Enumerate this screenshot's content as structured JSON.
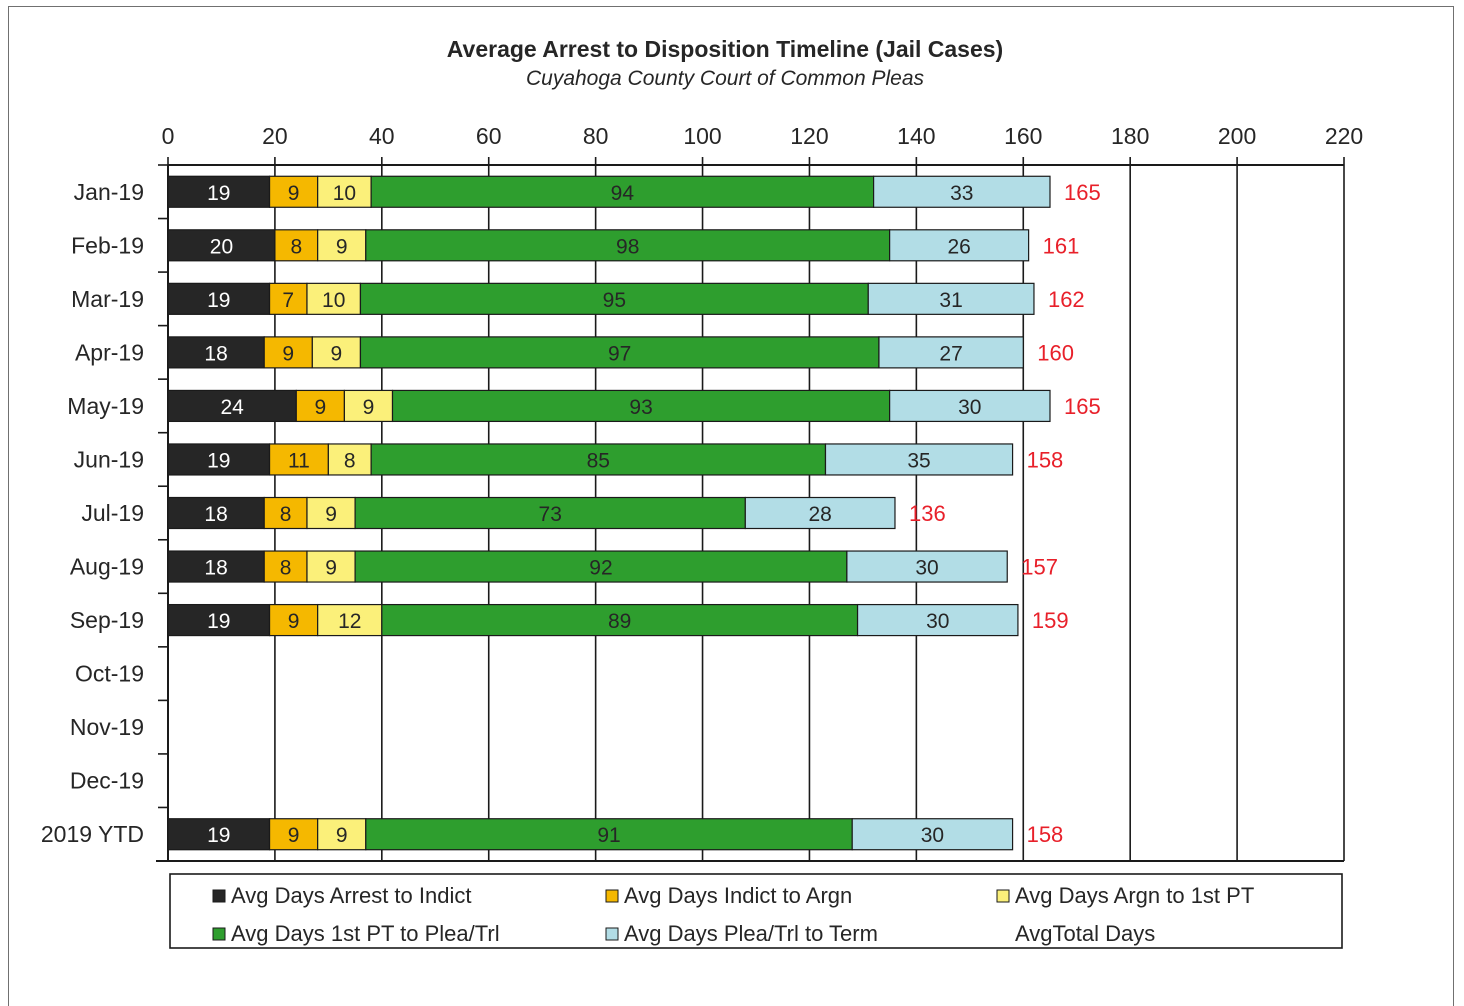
{
  "chart_data": {
    "type": "bar",
    "orientation": "horizontal",
    "stacked": true,
    "title": "Average Arrest to Disposition  Timeline (Jail Cases)",
    "subtitle": "Cuyahoga County Court of Common Pleas",
    "xlim": [
      0,
      220
    ],
    "xticks": [
      "0",
      "20",
      "40",
      "60",
      "80",
      "100",
      "120",
      "140",
      "160",
      "180",
      "200",
      "220"
    ],
    "axis_position": "top",
    "grid": "vertical",
    "legend_position": "bottom",
    "categories": [
      "Jan-19",
      "Feb-19",
      "Mar-19",
      "Apr-19",
      "May-19",
      "Jun-19",
      "Jul-19",
      "Aug-19",
      "Sep-19",
      "Oct-19",
      "Nov-19",
      "Dec-19",
      "2019 YTD"
    ],
    "series": [
      {
        "name": "Avg Days Arrest to Indict",
        "color": "#262626",
        "label_color": "#ffffff",
        "values": [
          19,
          20,
          19,
          18,
          24,
          19,
          18,
          18,
          19,
          null,
          null,
          null,
          19
        ]
      },
      {
        "name": "Avg Days Indict to Argn",
        "color": "#f5b800",
        "label_color": "#262626",
        "values": [
          9,
          8,
          7,
          9,
          9,
          11,
          8,
          8,
          9,
          null,
          null,
          null,
          9
        ]
      },
      {
        "name": "Avg Days Argn to 1st PT",
        "color": "#fbf07a",
        "label_color": "#262626",
        "values": [
          10,
          9,
          10,
          9,
          9,
          8,
          9,
          9,
          12,
          null,
          null,
          null,
          9
        ]
      },
      {
        "name": "Avg Days 1st PT to Plea/Trl",
        "color": "#2e9e2e",
        "label_color": "#262626",
        "values": [
          94,
          98,
          95,
          97,
          93,
          85,
          73,
          92,
          89,
          null,
          null,
          null,
          91
        ]
      },
      {
        "name": "Avg Days Plea/Trl to Term",
        "color": "#b2dde6",
        "label_color": "#262626",
        "values": [
          33,
          26,
          31,
          27,
          30,
          35,
          28,
          30,
          30,
          null,
          null,
          null,
          30
        ]
      }
    ],
    "totals": {
      "name": "AvgTotal Days",
      "color": "#e8202a",
      "values": [
        165,
        161,
        162,
        160,
        165,
        158,
        136,
        157,
        159,
        null,
        null,
        null,
        158
      ]
    }
  }
}
